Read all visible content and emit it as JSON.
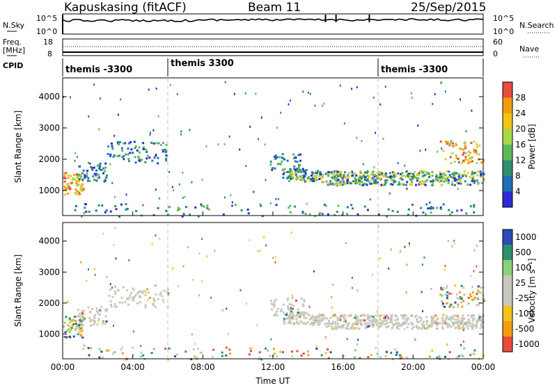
{
  "header": {
    "title": "Kapuskasing (fitACF)",
    "beam": "Beam 11",
    "date": "25/Sep/2015"
  },
  "noise_panel": {
    "left_label": "N.Sky",
    "left_ticks": [
      "10^5",
      "10^0"
    ],
    "right_ticks": [
      "10^5",
      "10^0"
    ],
    "right_label": "N.Search"
  },
  "freq_panel": {
    "left_label_1": "Freq.",
    "left_label_2": "[MHz]",
    "left_ticks": [
      "18",
      "8"
    ],
    "right_ticks": [
      "60",
      "0"
    ],
    "right_label": "Nave"
  },
  "cpid_panel": {
    "label": "CPID",
    "modes": [
      {
        "label": "themis -3300",
        "start_hour": 0
      },
      {
        "label": "themis 3300",
        "start_hour": 6
      },
      {
        "label": "themis -3300",
        "start_hour": 18
      }
    ]
  },
  "colors": {
    "power_scale": [
      "#2b2bd6",
      "#1f6fb5",
      "#2f8f6f",
      "#5cb85c",
      "#a8d94a",
      "#f0c419",
      "#f39c12",
      "#e74c3c"
    ],
    "velocity_scale": [
      "#e74c3c",
      "#f39c12",
      "#f0c419",
      "#c8c8c0",
      "#c8c8c0",
      "#8bd07a",
      "#2f8f6f",
      "#2b4bb6"
    ],
    "ground_scatter": "#c8c8c0",
    "range_lines": "#c0c0c0"
  },
  "chart_data": [
    {
      "type": "heatmap",
      "title": "",
      "xlabel": "",
      "ylabel": "Slant Range [km]",
      "xlim": [
        0,
        24
      ],
      "ylim": [
        200,
        4600
      ],
      "x_ticks": [
        "00:00",
        "04:00",
        "08:00",
        "12:00",
        "16:00",
        "20:00",
        "00:00"
      ],
      "y_ticks": [
        "1000",
        "2000",
        "3000",
        "4000"
      ],
      "colorbar_label": "Power [dB]",
      "colorbar_ticks": [
        "4",
        "8",
        "12",
        "16",
        "20",
        "24",
        "28"
      ],
      "colorbar_range": [
        0,
        30
      ],
      "mode_boundaries_hours": [
        6,
        18
      ]
    },
    {
      "type": "heatmap",
      "title": "",
      "xlabel": "Time UT",
      "ylabel": "Slant Range [km]",
      "xlim": [
        0,
        24
      ],
      "ylim": [
        200,
        4600
      ],
      "x_ticks": [
        "00:00",
        "04:00",
        "08:00",
        "12:00",
        "16:00",
        "20:00",
        "00:00"
      ],
      "y_ticks": [
        "1000",
        "2000",
        "3000",
        "4000"
      ],
      "colorbar_label": "Velocity [m s⁻¹]",
      "colorbar_ticks": [
        "1000",
        "500",
        "100",
        "25",
        "-25",
        "-100",
        "-500",
        "-1000"
      ],
      "mode_boundaries_hours": [
        6,
        18
      ]
    }
  ]
}
